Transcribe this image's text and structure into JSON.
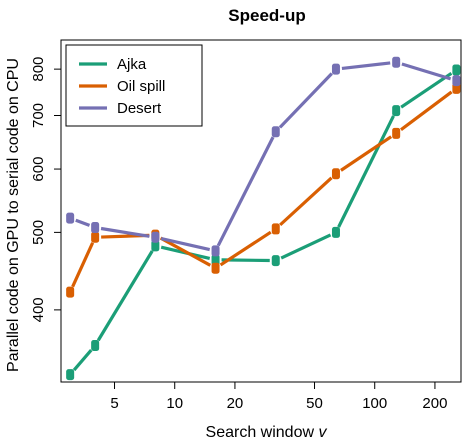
{
  "chart_data": {
    "type": "line",
    "title": "Speed-up",
    "xlabel": "Search window",
    "xlabel_var": "v",
    "ylabel": "Parallel code on GPU to serial code on CPU",
    "x_scale": "log",
    "y_scale": "log",
    "xlim": [
      2.7,
      270
    ],
    "ylim": [
      325,
      870
    ],
    "x_ticks": [
      5,
      10,
      20,
      50,
      100,
      200
    ],
    "x_tick_labels": [
      "5",
      "10",
      "20",
      "50",
      "100",
      "200"
    ],
    "y_ticks": [
      400,
      500,
      600,
      700,
      800
    ],
    "y_tick_labels": [
      "400",
      "500",
      "600",
      "700",
      "800"
    ],
    "grid": false,
    "legend_position": "top-left",
    "x": [
      3,
      4,
      8,
      16,
      32,
      64,
      128,
      256
    ],
    "series": [
      {
        "name": "Ajka",
        "color": "#1b9e77",
        "values": [
          332,
          361,
          481,
          462,
          461,
          500,
          710,
          798
        ]
      },
      {
        "name": "Oil spill",
        "color": "#d95f02",
        "values": [
          421,
          493,
          496,
          451,
          505,
          592,
          665,
          757
        ]
      },
      {
        "name": "Desert",
        "color": "#7570b3",
        "values": [
          521,
          507,
          493,
          474,
          668,
          800,
          816,
          774
        ]
      }
    ]
  }
}
